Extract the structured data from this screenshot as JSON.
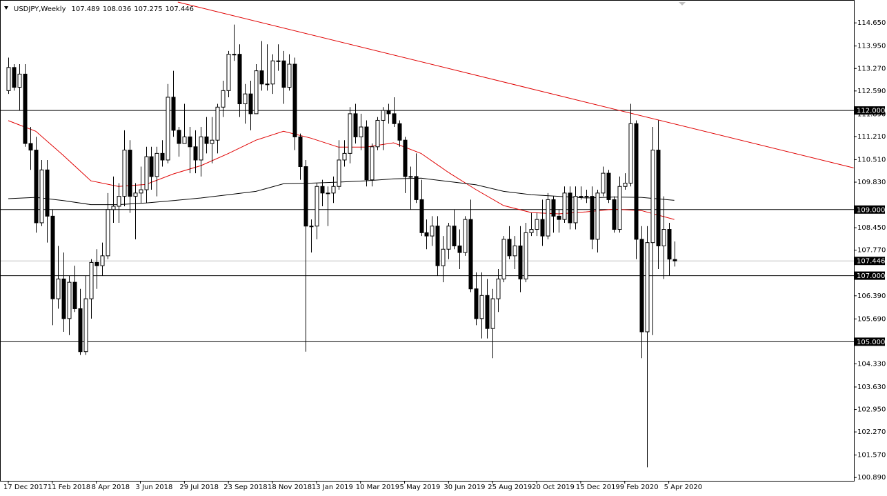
{
  "chart_data": {
    "type": "candlestick",
    "title": "USDJPY,Weekly",
    "categories": [
      "17 Dec 2017",
      null,
      null,
      null,
      null,
      null,
      null,
      null,
      "11 Feb 2018",
      null,
      null,
      null,
      null,
      null,
      null,
      null,
      "8 Apr 2018",
      null,
      null,
      null,
      null,
      null,
      null,
      null,
      "3 Jun 2018",
      null,
      null,
      null,
      null,
      null,
      null,
      null,
      "29 Jul 2018",
      null,
      null,
      null,
      null,
      null,
      null,
      null,
      "23 Sep 2018",
      null,
      null,
      null,
      null,
      null,
      null,
      null,
      "18 Nov 2018",
      null,
      null,
      null,
      null,
      null,
      null,
      null,
      "13 Jan 2019",
      null,
      null,
      null,
      null,
      null,
      null,
      null,
      "10 Mar 2019",
      null,
      null,
      null,
      null,
      null,
      null,
      null,
      "5 May 2019",
      null,
      null,
      null,
      null,
      null,
      null,
      null,
      "30 Jun 2019",
      null,
      null,
      null,
      null,
      null,
      null,
      null,
      "25 Aug 2019",
      null,
      null,
      null,
      null,
      null,
      null,
      null,
      "20 Oct 2019",
      null,
      null,
      null,
      null,
      null,
      null,
      null,
      "15 Dec 2019",
      null,
      null,
      null,
      null,
      null,
      null,
      null,
      "9 Feb 2020",
      null,
      null,
      null,
      null,
      null,
      null,
      null,
      "5 Apr 2020",
      null
    ],
    "open": [
      112.6,
      113.3,
      112.7,
      113.1,
      111.0,
      110.8,
      108.6,
      110.2,
      108.8,
      106.3,
      106.9,
      105.7,
      106.8,
      106.0,
      104.7,
      106.3,
      107.4,
      107.3,
      107.6,
      109.0,
      109.1,
      109.4,
      110.8,
      109.4,
      109.5,
      109.6,
      110.6,
      110.0,
      110.7,
      110.5,
      112.4,
      111.4,
      111.0,
      111.2,
      110.9,
      110.5,
      111.2,
      111.0,
      111.1,
      112.1,
      112.6,
      113.7,
      113.7,
      112.2,
      112.5,
      111.9,
      113.2,
      112.8,
      112.8,
      113.5,
      113.5,
      112.7,
      113.4,
      111.2,
      110.3,
      108.5,
      108.5,
      109.7,
      109.5,
      109.5,
      109.7,
      110.5,
      110.7,
      111.9,
      111.2,
      111.5,
      109.9,
      110.9,
      111.7,
      112.0,
      111.9,
      111.6,
      111.1,
      110.0,
      110.0,
      109.3,
      108.3,
      108.2,
      108.5,
      107.3,
      107.8,
      108.5,
      107.9,
      107.7,
      108.7,
      106.6,
      105.7,
      106.4,
      105.4,
      106.3,
      106.9,
      108.1,
      107.6,
      107.9,
      106.9,
      108.3,
      108.4,
      108.7,
      108.2,
      109.3,
      108.8,
      108.7,
      109.5,
      108.6,
      109.4,
      109.4,
      109.4,
      108.1,
      109.5,
      110.1,
      109.3,
      108.4,
      109.7,
      109.8,
      111.6,
      108.1,
      105.3,
      108.0,
      110.8,
      107.9,
      108.4,
      107.489
    ],
    "high": [
      113.6,
      113.4,
      113.4,
      113.4,
      111.5,
      111.2,
      110.5,
      110.5,
      109.0,
      107.9,
      107.7,
      107.0,
      107.3,
      106.6,
      107.0,
      107.5,
      107.8,
      108.0,
      109.5,
      110.0,
      109.8,
      111.4,
      111.1,
      109.8,
      110.3,
      110.9,
      110.9,
      110.9,
      111.1,
      112.8,
      113.2,
      111.5,
      112.2,
      111.5,
      111.4,
      111.5,
      111.8,
      111.8,
      112.2,
      112.9,
      113.8,
      114.6,
      114.0,
      112.8,
      112.9,
      113.4,
      114.1,
      114.0,
      113.7,
      114.0,
      113.8,
      113.7,
      113.6,
      111.3,
      110.5,
      108.7,
      109.8,
      109.9,
      109.7,
      110.0,
      111.1,
      111.1,
      112.1,
      112.2,
      111.9,
      111.7,
      111.0,
      111.8,
      112.1,
      112.2,
      112.4,
      111.7,
      111.2,
      110.3,
      110.7,
      109.9,
      108.7,
      108.8,
      108.8,
      108.2,
      108.6,
      109.0,
      108.4,
      108.8,
      109.3,
      107.1,
      107.1,
      106.9,
      106.6,
      107.2,
      108.2,
      108.5,
      108.2,
      108.5,
      108.6,
      108.9,
      108.9,
      109.3,
      109.5,
      109.4,
      109.0,
      109.7,
      109.7,
      109.7,
      109.7,
      109.6,
      109.7,
      109.6,
      110.3,
      110.2,
      109.4,
      110.0,
      110.1,
      112.2,
      111.7,
      108.5,
      108.5,
      111.5,
      111.7,
      109.4,
      108.6,
      108.036
    ],
    "low": [
      112.5,
      112.6,
      112.0,
      110.9,
      110.2,
      108.3,
      108.5,
      108.0,
      105.5,
      106.0,
      105.3,
      105.2,
      105.9,
      104.6,
      104.6,
      105.7,
      106.6,
      107.0,
      107.5,
      108.6,
      108.6,
      109.1,
      108.9,
      108.1,
      109.2,
      109.2,
      109.6,
      109.4,
      110.3,
      110.4,
      111.2,
      110.6,
      111.0,
      110.1,
      110.1,
      110.0,
      110.7,
      110.4,
      110.7,
      111.8,
      112.4,
      113.5,
      111.8,
      111.6,
      111.4,
      111.9,
      112.6,
      112.6,
      112.5,
      113.2,
      112.2,
      112.6,
      110.8,
      109.9,
      104.7,
      107.7,
      108.1,
      109.1,
      108.5,
      109.2,
      109.6,
      110.3,
      110.4,
      111.0,
      110.8,
      109.7,
      109.7,
      110.8,
      110.8,
      111.6,
      111.5,
      110.9,
      109.5,
      109.0,
      109.2,
      108.2,
      107.8,
      107.9,
      107.0,
      106.8,
      107.5,
      107.8,
      107.2,
      107.6,
      106.5,
      105.5,
      105.1,
      105.1,
      104.5,
      105.9,
      106.8,
      107.5,
      107.2,
      106.5,
      106.8,
      108.2,
      108.2,
      107.9,
      108.1,
      108.3,
      108.3,
      108.6,
      108.4,
      108.4,
      109.3,
      109.2,
      107.8,
      107.7,
      109.4,
      109.2,
      108.3,
      108.3,
      109.6,
      109.7,
      107.5,
      104.5,
      101.2,
      105.2,
      107.2,
      106.9,
      107.0,
      107.275
    ],
    "close": [
      113.3,
      112.7,
      113.1,
      111.0,
      110.8,
      108.6,
      110.2,
      108.8,
      106.3,
      106.9,
      105.7,
      106.8,
      106.0,
      104.7,
      106.3,
      107.4,
      107.3,
      107.6,
      109.0,
      109.1,
      109.4,
      110.8,
      109.4,
      109.5,
      109.6,
      110.6,
      110.0,
      110.7,
      110.5,
      112.4,
      111.4,
      111.0,
      111.2,
      110.9,
      110.5,
      111.2,
      111.0,
      111.1,
      112.1,
      112.6,
      113.7,
      113.7,
      112.2,
      112.5,
      111.9,
      113.2,
      112.8,
      112.8,
      113.5,
      113.5,
      112.7,
      113.4,
      111.2,
      110.3,
      108.5,
      108.5,
      109.7,
      109.5,
      109.5,
      109.7,
      110.5,
      110.7,
      111.9,
      111.2,
      111.5,
      109.9,
      110.9,
      111.7,
      112.0,
      111.9,
      111.6,
      111.1,
      110.0,
      110.0,
      109.3,
      108.3,
      108.2,
      108.5,
      107.3,
      107.8,
      108.5,
      107.9,
      107.7,
      108.7,
      106.6,
      105.7,
      106.4,
      105.4,
      106.3,
      106.9,
      108.1,
      107.6,
      107.9,
      106.9,
      108.3,
      108.4,
      108.7,
      108.2,
      109.3,
      108.8,
      108.7,
      109.5,
      108.6,
      109.4,
      109.4,
      109.4,
      108.1,
      109.5,
      110.1,
      109.3,
      108.4,
      109.7,
      109.8,
      111.6,
      108.1,
      105.3,
      108.0,
      110.8,
      107.9,
      108.4,
      107.5,
      107.446
    ],
    "bull_color": "#ffffff",
    "bear_color": "#000000",
    "ylim": [
      100.79,
      115.28
    ],
    "yticks": [
      {
        "value": 114.65,
        "label": "114.650"
      },
      {
        "value": 113.95,
        "label": "113.950"
      },
      {
        "value": 113.27,
        "label": "113.270"
      },
      {
        "value": 112.59,
        "label": "112.590"
      },
      {
        "value": 111.89,
        "label": "111.890"
      },
      {
        "value": 111.21,
        "label": "111.210"
      },
      {
        "value": 110.51,
        "label": "110.510"
      },
      {
        "value": 109.83,
        "label": "109.830"
      },
      {
        "value": 108.45,
        "label": "108.450"
      },
      {
        "value": 107.77,
        "label": "107.770"
      },
      {
        "value": 106.39,
        "label": "106.390"
      },
      {
        "value": 105.69,
        "label": "105.690"
      },
      {
        "value": 104.33,
        "label": "104.330"
      },
      {
        "value": 103.63,
        "label": "103.630"
      },
      {
        "value": 102.95,
        "label": "102.950"
      },
      {
        "value": 102.27,
        "label": "102.270"
      },
      {
        "value": 101.57,
        "label": "101.570"
      },
      {
        "value": 100.89,
        "label": "100.890"
      }
    ],
    "moving_averages": [
      {
        "color": "#e00000",
        "x": [
          0,
          5,
          10,
          15,
          20,
          25,
          30,
          35,
          40,
          45,
          50,
          55,
          60,
          65,
          70,
          75,
          80,
          85,
          90,
          95,
          100,
          105,
          110,
          115,
          121
        ],
        "values": [
          111.69,
          111.37,
          110.64,
          109.87,
          109.7,
          109.76,
          110.08,
          110.33,
          110.7,
          111.1,
          111.37,
          111.16,
          110.89,
          110.89,
          111.02,
          110.7,
          110.12,
          109.6,
          109.12,
          108.91,
          108.87,
          108.93,
          109.01,
          108.97,
          108.7
        ]
      },
      {
        "color": "#000000",
        "x": [
          0,
          5,
          10,
          15,
          20,
          25,
          30,
          35,
          40,
          45,
          50,
          55,
          60,
          65,
          70,
          75,
          80,
          85,
          90,
          95,
          100,
          105,
          110,
          115,
          121
        ],
        "values": [
          109.33,
          109.37,
          109.27,
          109.15,
          109.15,
          109.2,
          109.27,
          109.35,
          109.45,
          109.55,
          109.78,
          109.8,
          109.83,
          109.87,
          109.93,
          109.95,
          109.85,
          109.75,
          109.55,
          109.45,
          109.4,
          109.35,
          109.38,
          109.37,
          109.28
        ]
      }
    ],
    "trendline": {
      "color": "#e00000",
      "x": [
        30.8,
        153.6
      ],
      "values": [
        115.28,
        110.26
      ]
    },
    "levels": [
      {
        "value": 112,
        "label": "112.000"
      },
      {
        "value": 109,
        "label": "109.000"
      },
      {
        "value": 107,
        "label": "107.000"
      },
      {
        "value": 105,
        "label": "105.000"
      }
    ],
    "price_line_color": "#c0c0c0"
  }
}
